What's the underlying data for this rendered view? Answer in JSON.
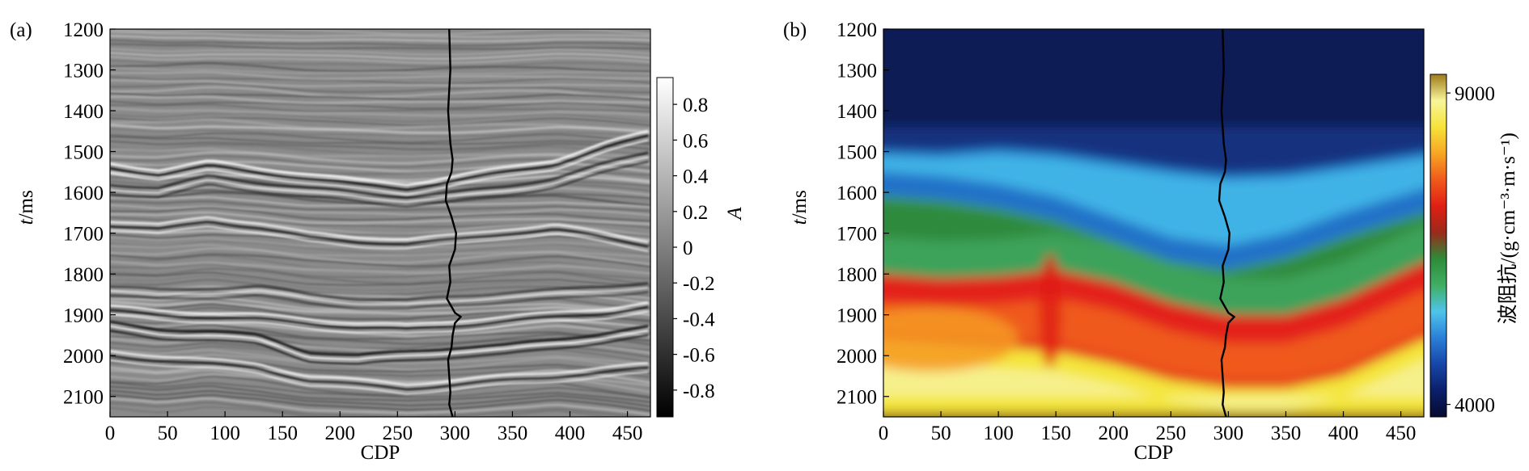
{
  "chart_data": [
    {
      "panel": "(a)",
      "type": "heatmap",
      "title": "",
      "xlabel": "CDP",
      "ylabel_italic": "t",
      "ylabel_unit": "/ms",
      "xlim": [
        0,
        470
      ],
      "ylim": [
        1200,
        2150
      ],
      "y_inverted": true,
      "xticks": [
        0,
        50,
        100,
        150,
        200,
        250,
        300,
        350,
        400,
        450
      ],
      "yticks": [
        1200,
        1300,
        1400,
        1500,
        1600,
        1700,
        1800,
        1900,
        2000,
        2100
      ],
      "colormap": "gray",
      "colorbar": {
        "label": "A",
        "min": -0.95,
        "max": 0.95,
        "ticks": [
          0.8,
          0.6,
          0.4,
          0.2,
          0,
          -0.2,
          -0.4,
          -0.6,
          -0.8
        ],
        "tick_labels": [
          "0.8",
          "0.6",
          "0.4",
          "0.2",
          "0",
          "-0.2",
          "-0.4",
          "-0.6",
          "-0.8"
        ],
        "colors": [
          "#000000",
          "#ffffff"
        ]
      },
      "reflectors": [
        {
          "t": [
            1530,
            1545,
            1525,
            1540,
            1555,
            1570,
            1580,
            1560,
            1540,
            1520,
            1480,
            1450
          ],
          "amp": 0.9
        },
        {
          "t": [
            1580,
            1590,
            1560,
            1575,
            1590,
            1600,
            1610,
            1600,
            1585,
            1565,
            1530,
            1500
          ],
          "amp": -0.7
        },
        {
          "t": [
            1670,
            1680,
            1660,
            1675,
            1700,
            1710,
            1715,
            1705,
            1690,
            1680,
            1700,
            1720
          ],
          "amp": 0.8
        },
        {
          "t": [
            1830,
            1840,
            1835,
            1830,
            1850,
            1860,
            1865,
            1855,
            1845,
            1840,
            1830,
            1820
          ],
          "amp": -0.6
        },
        {
          "t": [
            1880,
            1890,
            1895,
            1900,
            1910,
            1920,
            1925,
            1915,
            1905,
            1895,
            1885,
            1870
          ],
          "amp": 0.85
        },
        {
          "t": [
            1920,
            1935,
            1940,
            1950,
            1990,
            2000,
            1990,
            1980,
            1975,
            1960,
            1945,
            1930
          ],
          "amp": -0.9
        },
        {
          "t": [
            1990,
            2000,
            2010,
            2020,
            2050,
            2060,
            2070,
            2060,
            2050,
            2040,
            2030,
            2020
          ],
          "amp": 0.8
        }
      ],
      "well_log": {
        "cdp": [
          295,
          296,
          294,
          296,
          298,
          297,
          293,
          292,
          297,
          301,
          300,
          295,
          296,
          293,
          297,
          300,
          305,
          300,
          298,
          297,
          294,
          295,
          296,
          295,
          298
        ],
        "t": [
          1200,
          1300,
          1400,
          1480,
          1520,
          1550,
          1580,
          1620,
          1660,
          1700,
          1740,
          1780,
          1820,
          1860,
          1880,
          1895,
          1905,
          1920,
          1950,
          1980,
          2010,
          2050,
          2090,
          2120,
          2150
        ]
      }
    },
    {
      "panel": "(b)",
      "type": "heatmap",
      "title": "",
      "xlabel": "CDP",
      "ylabel_italic": "t",
      "ylabel_unit": "/ms",
      "xlim": [
        0,
        470
      ],
      "ylim": [
        1200,
        2150
      ],
      "y_inverted": true,
      "xticks": [
        0,
        50,
        100,
        150,
        200,
        250,
        300,
        350,
        400,
        450
      ],
      "yticks": [
        1200,
        1300,
        1400,
        1500,
        1600,
        1700,
        1800,
        1900,
        2000,
        2100
      ],
      "colormap": "impedance",
      "colorbar": {
        "label": "波阻抗/(g·cm⁻³·m·s⁻¹)",
        "min": 3800,
        "max": 9300,
        "ticks": [
          9000,
          4000
        ],
        "tick_labels": [
          "9000",
          "4000"
        ],
        "colors": [
          "#050a2e",
          "#0b1f6b",
          "#1746a8",
          "#2b7fd8",
          "#4fc4ea",
          "#3fae62",
          "#2e8b3a",
          "#9a2a1a",
          "#e01f14",
          "#f05a1c",
          "#f7a623",
          "#f6e33a",
          "#f7f59a",
          "#a07a18"
        ]
      },
      "horizons_cdp": [
        0,
        50,
        100,
        150,
        200,
        250,
        300,
        350,
        400,
        470
      ],
      "horizons": {
        "bright_blue_top": [
          1495,
          1500,
          1490,
          1500,
          1520,
          1540,
          1555,
          1550,
          1530,
          1500
        ],
        "green_top": [
          1610,
          1620,
          1640,
          1670,
          1720,
          1770,
          1790,
          1760,
          1710,
          1650
        ],
        "red_top": [
          1800,
          1810,
          1805,
          1790,
          1820,
          1870,
          1900,
          1900,
          1860,
          1770
        ],
        "yellow_top": [
          1960,
          1970,
          1980,
          1990,
          2020,
          2060,
          2080,
          2080,
          2050,
          1960
        ],
        "bottom": [
          2140,
          2140,
          2140,
          2140,
          2140,
          2140,
          2140,
          2140,
          2140,
          2140
        ]
      },
      "well_log": {
        "cdp": [
          295,
          296,
          294,
          296,
          298,
          297,
          293,
          292,
          297,
          301,
          300,
          295,
          296,
          293,
          297,
          300,
          305,
          300,
          298,
          297,
          294,
          295,
          296,
          295,
          298
        ],
        "t": [
          1200,
          1300,
          1400,
          1480,
          1520,
          1550,
          1580,
          1620,
          1660,
          1700,
          1740,
          1780,
          1820,
          1860,
          1880,
          1895,
          1905,
          1920,
          1950,
          1980,
          2010,
          2050,
          2090,
          2120,
          2150
        ]
      }
    }
  ]
}
